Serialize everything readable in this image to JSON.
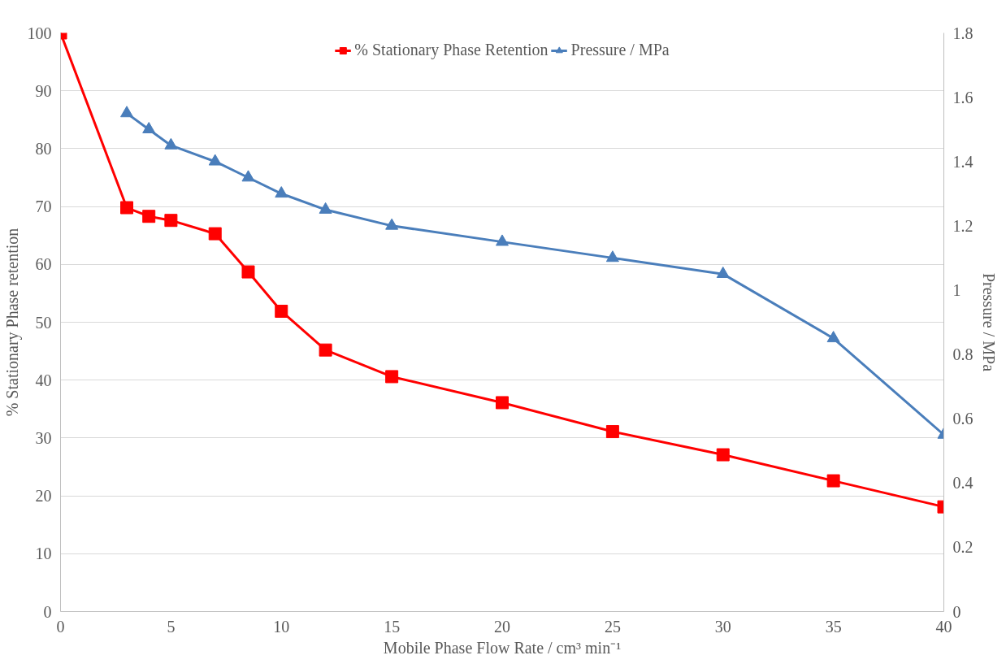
{
  "chart_data": {
    "type": "line",
    "xlabel": "Mobile Phase Flow Rate / cm³ min⁻¹",
    "ylabel": "% Stationary Phase retention",
    "y2label": "Pressure / MPa",
    "xlim": [
      0,
      40
    ],
    "xticks": [
      0,
      5,
      10,
      15,
      20,
      25,
      30,
      35,
      40
    ],
    "ylim": [
      0,
      100
    ],
    "yticks": [
      0,
      10,
      20,
      30,
      40,
      50,
      60,
      70,
      80,
      90,
      100
    ],
    "y2lim": [
      0,
      1.8
    ],
    "y2ticks": [
      0,
      0.2,
      0.4,
      0.6,
      0.8,
      1,
      1.2,
      1.4,
      1.6,
      1.8
    ],
    "grid": "y",
    "legend": "top",
    "line_style": "solid",
    "series": [
      {
        "name": "% Stationary Phase Retention",
        "color": "#ff0000",
        "marker": "square",
        "x": [
          0,
          3,
          4,
          5,
          7,
          8.5,
          10,
          12,
          15,
          20,
          25,
          30,
          35,
          40
        ],
        "values": [
          100,
          69.8,
          68.3,
          67.6,
          65.3,
          58.7,
          51.9,
          45.2,
          40.6,
          36.1,
          31.1,
          27.1,
          22.6,
          18.1
        ]
      },
      {
        "name": "Pressure / MPa",
        "color": "#4a7ebb",
        "marker": "triangle",
        "axis": "y2",
        "x": [
          3,
          4,
          5,
          7,
          8.5,
          10,
          12,
          15,
          20,
          25,
          30,
          35,
          40
        ],
        "values": [
          1.55,
          1.5,
          1.45,
          1.4,
          1.35,
          1.3,
          1.25,
          1.2,
          1.15,
          1.1,
          1.05,
          0.85,
          0.55
        ]
      }
    ]
  }
}
